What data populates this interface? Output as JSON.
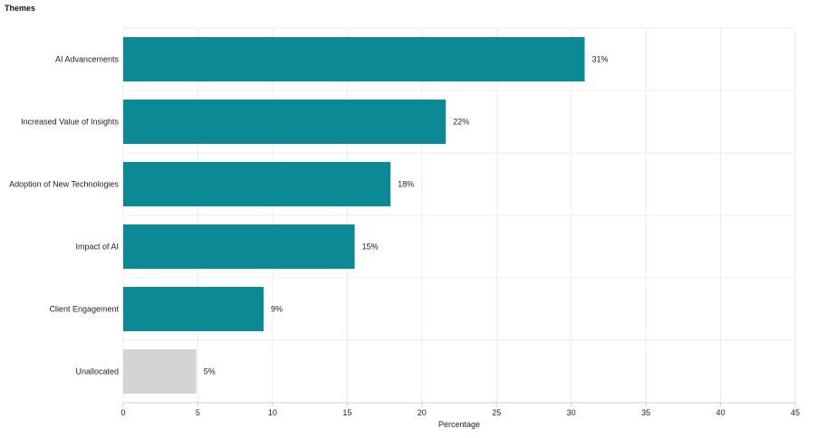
{
  "chart_data": {
    "type": "bar",
    "orientation": "horizontal",
    "title": "Themes",
    "xlabel": "Percentage",
    "ylabel": "",
    "categories": [
      "AI Advancements",
      "Increased Value of Insights",
      "Adoption of New Technologies",
      "Impact of AI",
      "Client Engagement",
      "Unallocated"
    ],
    "values": [
      30.9,
      21.6,
      17.9,
      15.5,
      9.4,
      4.9
    ],
    "value_labels": [
      "31%",
      "22%",
      "18%",
      "15%",
      "9%",
      "5%"
    ],
    "bar_colors": [
      "#0b8a95",
      "#0b8a95",
      "#0b8a95",
      "#0b8a95",
      "#0b8a95",
      "#d4d4d4"
    ],
    "xlim": [
      0,
      45
    ],
    "xticks": [
      0,
      5,
      10,
      15,
      20,
      25,
      30,
      35,
      40,
      45
    ],
    "grid": true,
    "legend": "none"
  }
}
